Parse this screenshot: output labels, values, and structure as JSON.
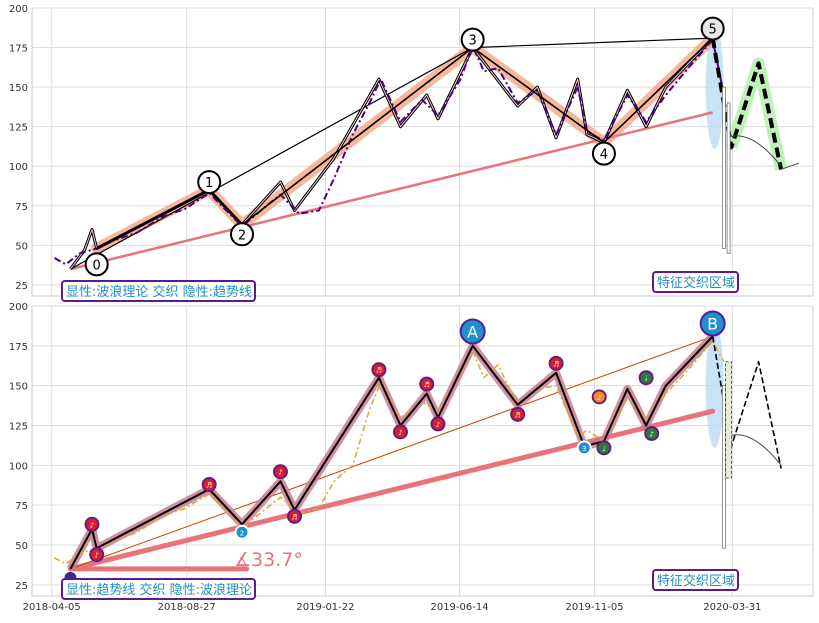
{
  "chart_data": [
    {
      "type": "line",
      "panel": "top",
      "ylim": [
        18,
        200
      ],
      "xlim": [
        "2018-03-15",
        "2020-06-25"
      ],
      "y_ticks": [
        25,
        50,
        75,
        100,
        125,
        150,
        175,
        200
      ],
      "grid": true,
      "colors": {
        "wave": "#000000",
        "wave_band": "#f4a582",
        "price": "#4b0082",
        "trend": "#e8737b",
        "projection": "#000000",
        "projection_band": "#b8f0b0",
        "highlight": "#b9dcf2"
      },
      "box_label": "显性:波浪理论 交织 隐性:趋势线",
      "region_label": "特征交织区域",
      "wave_points": [
        {
          "label": "0",
          "x": "2018-05-23",
          "y": 48
        },
        {
          "label": "1",
          "x": "2018-09-20",
          "y": 85
        },
        {
          "label": "2",
          "x": "2018-10-25",
          "y": 63
        },
        {
          "label": "3",
          "x": "2019-06-28",
          "y": 175
        },
        {
          "label": "4",
          "x": "2019-11-15",
          "y": 115
        },
        {
          "label": "5",
          "x": "2020-03-10",
          "y": 181
        }
      ],
      "wave_label_positions": [
        {
          "label": "0",
          "x": "2018-05-23",
          "y": 38
        },
        {
          "label": "1",
          "x": "2018-09-20",
          "y": 90
        },
        {
          "label": "2",
          "x": "2018-10-25",
          "y": 57
        },
        {
          "label": "3",
          "x": "2019-06-28",
          "y": 180
        },
        {
          "label": "4",
          "x": "2019-11-15",
          "y": 108
        },
        {
          "label": "5",
          "x": "2020-03-10",
          "y": 187
        }
      ],
      "zigzag": [
        [
          "2018-04-25",
          35
        ],
        [
          "2018-05-10",
          47
        ],
        [
          "2018-05-18",
          60
        ],
        [
          "2018-05-23",
          48
        ],
        [
          "2018-09-20",
          85
        ],
        [
          "2018-10-25",
          63
        ],
        [
          "2018-12-05",
          90
        ],
        [
          "2018-12-20",
          72
        ],
        [
          "2019-01-31",
          105
        ],
        [
          "2019-03-20",
          155
        ],
        [
          "2019-04-12",
          125
        ],
        [
          "2019-05-10",
          145
        ],
        [
          "2019-05-22",
          130
        ],
        [
          "2019-06-28",
          175
        ],
        [
          "2019-08-15",
          138
        ],
        [
          "2019-09-05",
          150
        ],
        [
          "2019-09-25",
          118
        ],
        [
          "2019-10-18",
          155
        ],
        [
          "2019-10-28",
          120
        ],
        [
          "2019-11-15",
          115
        ],
        [
          "2019-12-10",
          148
        ],
        [
          "2019-12-30",
          125
        ],
        [
          "2020-01-20",
          150
        ],
        [
          "2020-03-10",
          181
        ]
      ],
      "price": [
        [
          "2018-04-08",
          42
        ],
        [
          "2018-04-20",
          38
        ],
        [
          "2018-05-05",
          45
        ],
        [
          "2018-05-23",
          48
        ],
        [
          "2018-06-10",
          53
        ],
        [
          "2018-07-05",
          58
        ],
        [
          "2018-08-01",
          68
        ],
        [
          "2018-08-25",
          73
        ],
        [
          "2018-09-20",
          83
        ],
        [
          "2018-10-25",
          62
        ],
        [
          "2018-11-20",
          75
        ],
        [
          "2018-12-05",
          82
        ],
        [
          "2018-12-25",
          70
        ],
        [
          "2019-01-15",
          72
        ],
        [
          "2019-01-31",
          92
        ],
        [
          "2019-02-20",
          120
        ],
        [
          "2019-03-10",
          140
        ],
        [
          "2019-03-22",
          155
        ],
        [
          "2019-04-12",
          128
        ],
        [
          "2019-05-05",
          142
        ],
        [
          "2019-05-22",
          132
        ],
        [
          "2019-06-15",
          155
        ],
        [
          "2019-06-28",
          176
        ],
        [
          "2019-07-10",
          160
        ],
        [
          "2019-07-25",
          162
        ],
        [
          "2019-08-15",
          140
        ],
        [
          "2019-09-05",
          148
        ],
        [
          "2019-09-25",
          120
        ],
        [
          "2019-10-18",
          150
        ],
        [
          "2019-10-28",
          122
        ],
        [
          "2019-11-15",
          116
        ],
        [
          "2019-12-10",
          145
        ],
        [
          "2019-12-30",
          128
        ],
        [
          "2020-01-20",
          145
        ],
        [
          "2020-02-10",
          160
        ],
        [
          "2020-03-10",
          180
        ],
        [
          "2020-03-22",
          145
        ]
      ],
      "trendline": [
        [
          "2018-04-25",
          35
        ],
        [
          "2020-03-10",
          134
        ]
      ],
      "channel_line": [
        [
          "2018-04-25",
          35
        ],
        [
          "2019-06-28",
          175
        ],
        [
          "2020-03-10",
          181
        ]
      ],
      "projection": [
        [
          "2020-03-10",
          181
        ],
        [
          "2020-03-30",
          112
        ],
        [
          "2020-04-28",
          165
        ],
        [
          "2020-05-22",
          98
        ]
      ],
      "projection_tail": [
        [
          "2020-05-22",
          98
        ],
        [
          "2020-06-10",
          102
        ]
      ],
      "lower_arc": [
        [
          "2020-03-25",
          118
        ],
        [
          "2020-04-20",
          112
        ],
        [
          "2020-05-22",
          100
        ]
      ],
      "vertical_markers": [
        {
          "x": "2020-03-22",
          "from": 150,
          "to": 48
        },
        {
          "x": "2020-03-27",
          "from": 140,
          "to": 45
        }
      ]
    },
    {
      "type": "line",
      "panel": "bottom",
      "ylim": [
        18,
        200
      ],
      "xlim": [
        "2018-03-15",
        "2020-06-25"
      ],
      "y_ticks": [
        25,
        50,
        75,
        100,
        125,
        150,
        175,
        200
      ],
      "x_ticks": [
        "2018-04-05",
        "2018-08-27",
        "2019-01-22",
        "2019-06-14",
        "2019-11-05",
        "2020-03-31"
      ],
      "grid": true,
      "colors": {
        "trend": "#e8737b",
        "trend_band": "#c97b91",
        "zigzag": "#000000",
        "price": "#e2a83a",
        "projection": "#000000",
        "highlight": "#b9dcf2"
      },
      "box_label": "显性:趋势线 交织 隐性:波浪理论",
      "region_label": "特征交织区域",
      "angle_label": "∡33.7°",
      "wave_points": [
        {
          "label": "A",
          "x": "2019-06-28",
          "y": 184
        },
        {
          "label": "B",
          "x": "2020-03-10",
          "y": 189
        }
      ],
      "zigzag": [
        [
          "2018-04-25",
          35
        ],
        [
          "2018-05-18",
          60
        ],
        [
          "2018-05-23",
          48
        ],
        [
          "2018-09-20",
          85
        ],
        [
          "2018-10-25",
          63
        ],
        [
          "2018-12-05",
          90
        ],
        [
          "2018-12-20",
          72
        ],
        [
          "2019-03-20",
          155
        ],
        [
          "2019-04-12",
          125
        ],
        [
          "2019-05-10",
          145
        ],
        [
          "2019-05-22",
          130
        ],
        [
          "2019-06-28",
          175
        ],
        [
          "2019-08-15",
          138
        ],
        [
          "2019-09-25",
          158
        ],
        [
          "2019-10-25",
          112
        ],
        [
          "2019-11-15",
          115
        ],
        [
          "2019-12-10",
          148
        ],
        [
          "2019-12-30",
          125
        ],
        [
          "2020-01-20",
          150
        ],
        [
          "2020-03-10",
          181
        ]
      ],
      "price": [
        [
          "2018-04-08",
          42
        ],
        [
          "2018-04-20",
          38
        ],
        [
          "2018-05-05",
          45
        ],
        [
          "2018-05-23",
          48
        ],
        [
          "2018-06-10",
          52
        ],
        [
          "2018-07-05",
          58
        ],
        [
          "2018-08-01",
          68
        ],
        [
          "2018-08-25",
          73
        ],
        [
          "2018-09-20",
          82
        ],
        [
          "2018-10-25",
          61
        ],
        [
          "2018-11-20",
          73
        ],
        [
          "2018-12-05",
          80
        ],
        [
          "2018-12-25",
          70
        ],
        [
          "2019-01-15",
          73
        ],
        [
          "2019-01-31",
          90
        ],
        [
          "2019-02-20",
          100
        ],
        [
          "2019-03-10",
          135
        ],
        [
          "2019-03-22",
          152
        ],
        [
          "2019-04-12",
          130
        ],
        [
          "2019-05-05",
          140
        ],
        [
          "2019-05-22",
          133
        ],
        [
          "2019-06-15",
          158
        ],
        [
          "2019-06-28",
          172
        ],
        [
          "2019-07-10",
          155
        ],
        [
          "2019-07-25",
          163
        ],
        [
          "2019-08-15",
          138
        ],
        [
          "2019-09-05",
          148
        ],
        [
          "2019-09-25",
          150
        ],
        [
          "2019-10-18",
          118
        ],
        [
          "2019-10-28",
          122
        ],
        [
          "2019-11-15",
          115
        ],
        [
          "2019-12-10",
          142
        ],
        [
          "2019-12-30",
          130
        ],
        [
          "2020-01-20",
          145
        ],
        [
          "2020-02-10",
          158
        ],
        [
          "2020-03-10",
          178
        ],
        [
          "2020-03-22",
          165
        ]
      ],
      "trendline": [
        [
          "2018-04-25",
          35
        ],
        [
          "2020-03-10",
          134
        ]
      ],
      "angle_ray": [
        [
          "2018-04-25",
          35
        ],
        [
          "2018-10-30",
          35
        ]
      ],
      "channel_line": [
        [
          "2018-04-25",
          35
        ],
        [
          "2020-03-10",
          181
        ]
      ],
      "projection": [
        [
          "2020-03-10",
          181
        ],
        [
          "2020-03-30",
          112
        ],
        [
          "2020-04-28",
          165
        ],
        [
          "2020-05-22",
          98
        ]
      ],
      "lower_arc": [
        [
          "2020-03-25",
          118
        ],
        [
          "2020-04-20",
          112
        ],
        [
          "2020-05-22",
          100
        ]
      ],
      "vertical_markers": [
        {
          "x": "2020-03-22",
          "from": 150,
          "to": 48
        }
      ],
      "bar_marker": {
        "x": "2020-03-27",
        "from": 165,
        "to": 92
      },
      "circle_markers": [
        {
          "x": "2018-05-18",
          "y": 63,
          "kind": "dark",
          "glyph": "♪"
        },
        {
          "x": "2018-05-23",
          "y": 44,
          "kind": "dark",
          "glyph": "♪"
        },
        {
          "x": "2018-09-20",
          "y": 88,
          "kind": "dark",
          "glyph": "♬"
        },
        {
          "x": "2018-10-25",
          "y": 58,
          "kind": "blue",
          "glyph": "2"
        },
        {
          "x": "2018-12-05",
          "y": 96,
          "kind": "dark",
          "glyph": "♪"
        },
        {
          "x": "2018-12-20",
          "y": 68,
          "kind": "dark",
          "glyph": "♬"
        },
        {
          "x": "2019-03-20",
          "y": 160,
          "kind": "dark",
          "glyph": "♬"
        },
        {
          "x": "2019-04-12",
          "y": 121,
          "kind": "dark",
          "glyph": "♪"
        },
        {
          "x": "2019-05-10",
          "y": 151,
          "kind": "dark",
          "glyph": "♬"
        },
        {
          "x": "2019-05-22",
          "y": 126,
          "kind": "dark",
          "glyph": "♪"
        },
        {
          "x": "2019-08-15",
          "y": 132,
          "kind": "dark",
          "glyph": "♬"
        },
        {
          "x": "2019-09-25",
          "y": 164,
          "kind": "dark",
          "glyph": "♬"
        },
        {
          "x": "2019-10-25",
          "y": 111,
          "kind": "blue",
          "glyph": "3"
        },
        {
          "x": "2019-11-10",
          "y": 143,
          "kind": "orange",
          "glyph": "♪"
        },
        {
          "x": "2019-11-15",
          "y": 111,
          "kind": "green",
          "glyph": "♩"
        },
        {
          "x": "2019-12-30",
          "y": 155,
          "kind": "green",
          "glyph": "♩"
        },
        {
          "x": "2020-01-05",
          "y": 120,
          "kind": "green",
          "glyph": "♪"
        }
      ]
    }
  ]
}
